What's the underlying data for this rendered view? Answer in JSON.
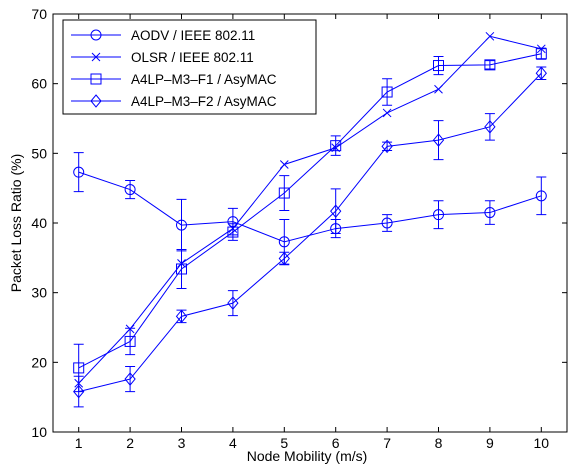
{
  "chart_data": {
    "type": "line",
    "title": "",
    "xlabel": "Node Mobility (m/s)",
    "ylabel": "Packet Loss Ratio (%)",
    "xlim": [
      0.5,
      10.5
    ],
    "ylim": [
      10,
      70
    ],
    "xticks": [
      1,
      2,
      3,
      4,
      5,
      6,
      7,
      8,
      9,
      10
    ],
    "yticks": [
      10,
      20,
      30,
      40,
      50,
      60,
      70
    ],
    "grid": false,
    "legend_position": "top-left",
    "line_color": "#0000ff",
    "x": [
      1,
      2,
      3,
      4,
      5,
      6,
      7,
      8,
      9,
      10
    ],
    "series": [
      {
        "name": "AODV / IEEE 802.11",
        "marker": "circle",
        "values": [
          47.3,
          44.8,
          39.7,
          40.2,
          37.3,
          39.2,
          40.0,
          41.2,
          41.5,
          43.9
        ],
        "error": [
          2.8,
          1.3,
          3.7,
          1.9,
          3.2,
          1.3,
          1.2,
          2.0,
          1.7,
          2.7
        ]
      },
      {
        "name": "OLSR / IEEE 802.11",
        "marker": "x",
        "values": [
          17.0,
          24.8,
          34.2,
          39.2,
          48.4,
          50.8,
          55.8,
          59.2,
          66.8,
          65.0
        ]
      },
      {
        "name": "A4LP–M3–F1 / AsyMAC",
        "marker": "square",
        "values": [
          19.2,
          23.0,
          33.4,
          38.7,
          44.3,
          51.1,
          58.8,
          62.6,
          62.7,
          64.3
        ],
        "error": [
          3.4,
          1.9,
          2.8,
          1.2,
          2.5,
          1.4,
          1.9,
          1.3,
          0.6,
          0.8
        ]
      },
      {
        "name": "A4LP–M3–F2 / AsyMAC",
        "marker": "diamond",
        "values": [
          15.8,
          17.6,
          26.6,
          28.5,
          34.9,
          41.7,
          51.0,
          51.9,
          53.8,
          61.5
        ],
        "error": [
          2.2,
          1.8,
          0.9,
          1.8,
          0.9,
          3.2,
          0.6,
          2.8,
          1.9,
          0.9
        ]
      }
    ]
  }
}
